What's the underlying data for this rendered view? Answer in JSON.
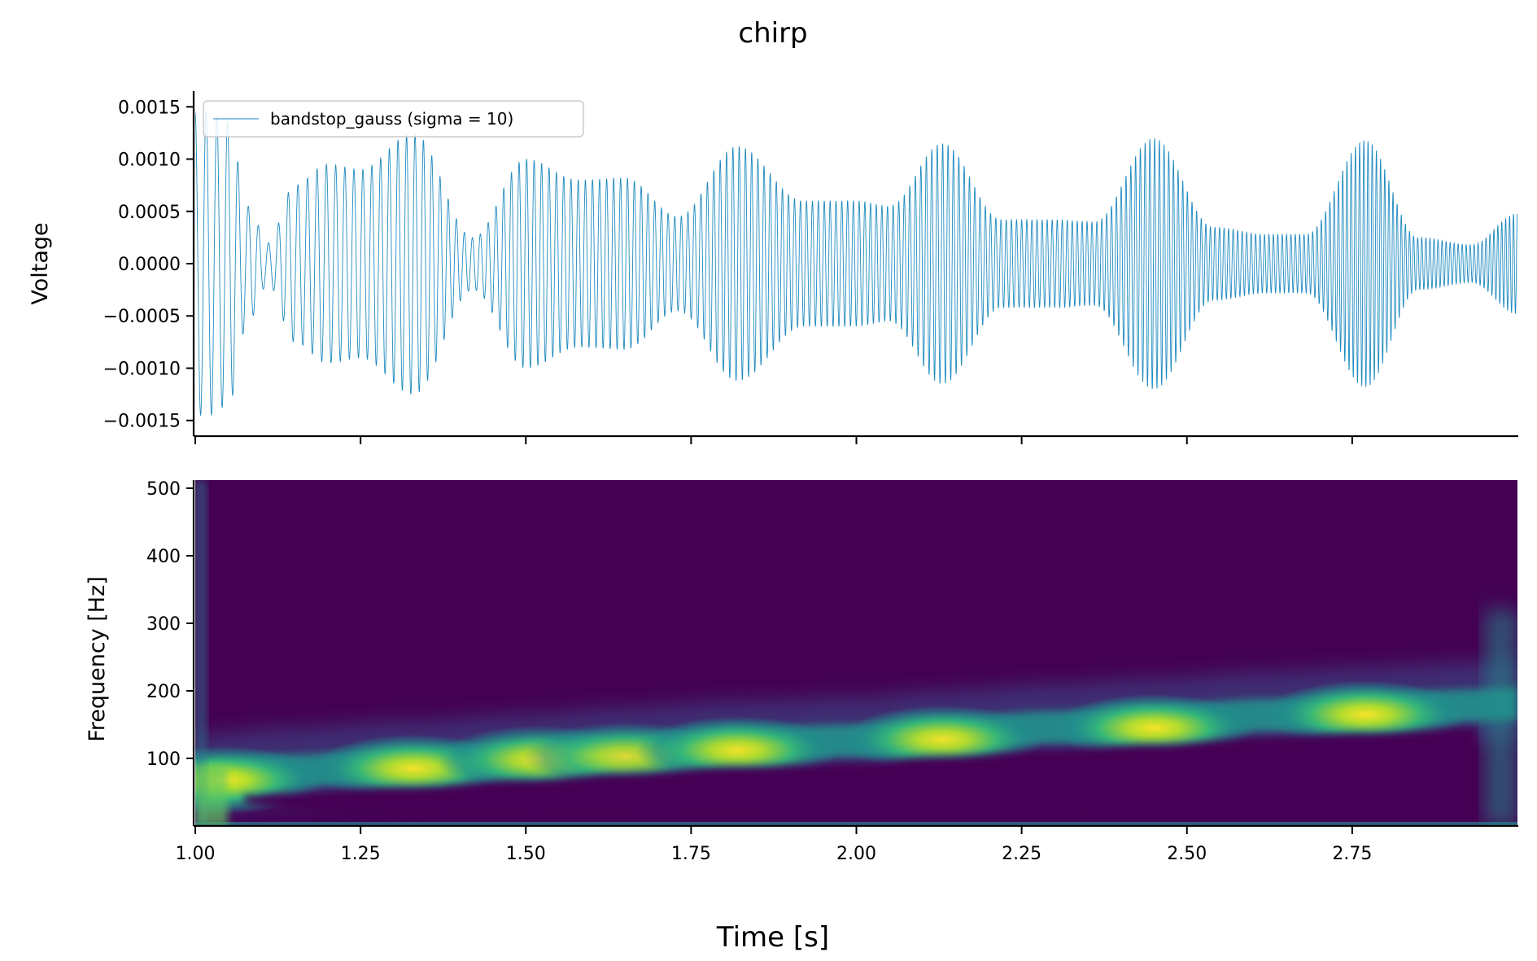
{
  "chart_data": [
    {
      "type": "line",
      "title": "chirp",
      "xlabel": "Time [s]",
      "ylabel": "Voltage",
      "xlim": [
        1.0,
        3.0
      ],
      "ylim": [
        -0.00165,
        0.00165
      ],
      "ytick_labels": [
        "0.0015",
        "0.0010",
        "0.0005",
        "0.0000",
        "−0.0005",
        "−0.0010",
        "−0.0015"
      ],
      "ytick_values": [
        0.0015,
        0.001,
        0.0005,
        0.0,
        -0.0005,
        -0.001,
        -0.0015
      ],
      "xtick_values": [
        1.0,
        1.25,
        1.5,
        1.75,
        2.0,
        2.25,
        2.5,
        2.75
      ],
      "grid": false,
      "legend_position": "top-left",
      "series": [
        {
          "name": "bandstop_gauss (sigma = 10)",
          "color": "#1f8ac0",
          "envelope_x": [
            1.0,
            1.02,
            1.05,
            1.08,
            1.11,
            1.15,
            1.2,
            1.25,
            1.33,
            1.42,
            1.5,
            1.58,
            1.65,
            1.73,
            1.82,
            1.92,
            2.0,
            2.05,
            2.13,
            2.22,
            2.3,
            2.36,
            2.45,
            2.54,
            2.62,
            2.68,
            2.77,
            2.85,
            2.93,
            3.0
          ],
          "envelope_y": [
            0.00145,
            0.00145,
            0.00135,
            0.00055,
            0.0002,
            0.00075,
            0.00095,
            0.0009,
            0.00125,
            0.00025,
            0.001,
            0.0008,
            0.00082,
            0.00045,
            0.00112,
            0.0006,
            0.0006,
            0.00055,
            0.00115,
            0.00042,
            0.00042,
            0.0004,
            0.0012,
            0.00035,
            0.00028,
            0.00028,
            0.00118,
            0.00025,
            0.00018,
            0.00048
          ],
          "frequency_start_hz": 60,
          "frequency_end_hz": 170
        }
      ]
    },
    {
      "type": "heatmap",
      "xlabel": "Time [s]",
      "ylabel": "Frequency [Hz]",
      "xlim": [
        1.0,
        3.0
      ],
      "ylim": [
        0,
        512
      ],
      "ytick_labels": [
        "500",
        "400",
        "300",
        "200",
        "100"
      ],
      "ytick_values": [
        500,
        400,
        300,
        200,
        100
      ],
      "xtick_labels": [
        "1.00",
        "1.25",
        "1.50",
        "1.75",
        "2.00",
        "2.25",
        "2.50",
        "2.75"
      ],
      "xtick_values": [
        1.0,
        1.25,
        1.5,
        1.75,
        2.0,
        2.25,
        2.5,
        2.75
      ],
      "colormap": "viridis",
      "ridge_x": [
        1.0,
        1.04,
        1.13,
        1.33,
        1.5,
        1.65,
        1.82,
        2.0,
        2.13,
        2.3,
        2.45,
        2.62,
        2.77,
        2.93,
        3.0
      ],
      "ridge_y": [
        62,
        68,
        75,
        85,
        95,
        105,
        115,
        120,
        130,
        140,
        148,
        158,
        165,
        172,
        175
      ],
      "hotspots": [
        {
          "x": 1.04,
          "y": 68,
          "intensity": 1.0
        },
        {
          "x": 1.33,
          "y": 85,
          "intensity": 0.95
        },
        {
          "x": 1.52,
          "y": 98,
          "intensity": 0.92
        },
        {
          "x": 1.65,
          "y": 103,
          "intensity": 0.85
        },
        {
          "x": 1.82,
          "y": 112,
          "intensity": 0.95
        },
        {
          "x": 2.13,
          "y": 128,
          "intensity": 0.95
        },
        {
          "x": 2.45,
          "y": 145,
          "intensity": 0.97
        },
        {
          "x": 2.77,
          "y": 165,
          "intensity": 0.97
        }
      ],
      "grid": false
    }
  ]
}
